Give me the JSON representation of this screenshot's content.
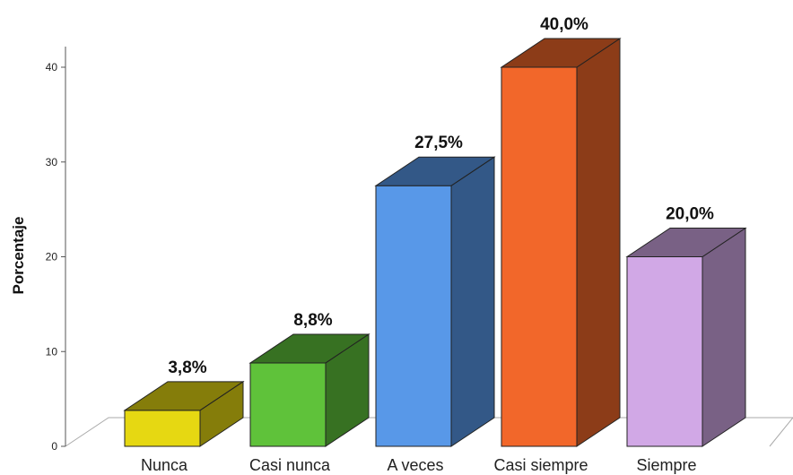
{
  "chart_data": {
    "type": "bar",
    "title": "",
    "xlabel": "",
    "ylabel": "Porcentaje",
    "ylim": [
      0,
      40
    ],
    "yticks": [
      0,
      10,
      20,
      30,
      40
    ],
    "categories": [
      "Nunca",
      "Casi nunca",
      "A veces",
      "Casi siempre",
      "Siempre"
    ],
    "values": [
      3.8,
      8.8,
      27.5,
      40.0,
      20.0
    ],
    "data_labels": [
      "3,8%",
      "8,8%",
      "27,5%",
      "40,0%",
      "20,0%"
    ],
    "colors": [
      "#e6d812",
      "#5fc23a",
      "#5898e8",
      "#f2672a",
      "#d1a8e6"
    ],
    "grid": false,
    "legend": "none",
    "style": "3d"
  }
}
